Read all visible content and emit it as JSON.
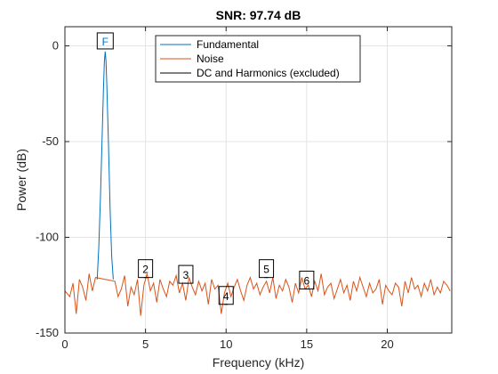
{
  "chart_data": {
    "type": "line",
    "title": "SNR:  97.74 dB",
    "xlabel": "Frequency (kHz)",
    "ylabel": "Power (dB)",
    "xlim": [
      0,
      24
    ],
    "ylim": [
      -150,
      10
    ],
    "xticks": [
      0,
      5,
      10,
      15,
      20
    ],
    "xtick_labels": [
      "0",
      "5",
      "10",
      "15",
      "20"
    ],
    "yticks": [
      0,
      -50,
      -100,
      -150
    ],
    "ytick_labels": [
      "0",
      "-50",
      "-100",
      "-150"
    ],
    "grid": true,
    "legend_position": "top",
    "series": [
      {
        "name": "Fundamental",
        "color": "#0072BD",
        "x": [
          2.0,
          2.1,
          2.2,
          2.3,
          2.4,
          2.45,
          2.5,
          2.55,
          2.6,
          2.7,
          2.8,
          2.9,
          3.0
        ],
        "y": [
          -122,
          -105,
          -80,
          -50,
          -20,
          -8,
          -3,
          -8,
          -20,
          -50,
          -85,
          -110,
          -122
        ]
      },
      {
        "name": "Noise",
        "color": "#D95319",
        "x": [
          0.0,
          0.3,
          0.5,
          0.7,
          0.9,
          1.1,
          1.3,
          1.5,
          1.7,
          1.9,
          3.1,
          3.3,
          3.5,
          3.7,
          3.9,
          4.1,
          4.3,
          4.5,
          4.7,
          4.9,
          5.1,
          5.3,
          5.5,
          5.7,
          5.9,
          6.1,
          6.3,
          6.5,
          6.7,
          6.9,
          7.1,
          7.3,
          7.5,
          7.7,
          7.9,
          8.1,
          8.3,
          8.5,
          8.7,
          8.9,
          9.1,
          9.3,
          9.5,
          9.7,
          9.9,
          10.1,
          10.3,
          10.5,
          10.7,
          10.9,
          11.1,
          11.3,
          11.5,
          11.7,
          11.9,
          12.1,
          12.3,
          12.5,
          12.7,
          12.9,
          13.1,
          13.3,
          13.5,
          13.7,
          13.9,
          14.1,
          14.3,
          14.5,
          14.7,
          14.9,
          15.1,
          15.3,
          15.5,
          15.7,
          15.9,
          16.1,
          16.3,
          16.5,
          16.7,
          16.9,
          17.1,
          17.3,
          17.5,
          17.7,
          17.9,
          18.1,
          18.3,
          18.5,
          18.7,
          18.9,
          19.1,
          19.3,
          19.5,
          19.7,
          19.9,
          20.1,
          20.3,
          20.5,
          20.7,
          20.9,
          21.1,
          21.3,
          21.5,
          21.7,
          21.9,
          22.1,
          22.3,
          22.5,
          22.7,
          22.9,
          23.1,
          23.3,
          23.5,
          23.7,
          23.9
        ],
        "y": [
          -128,
          -131,
          -124,
          -140,
          -122,
          -126,
          -133,
          -119,
          -128,
          -121,
          -123,
          -131,
          -127,
          -120,
          -136,
          -126,
          -130,
          -122,
          -141,
          -125,
          -119,
          -128,
          -124,
          -134,
          -122,
          -127,
          -131,
          -123,
          -125,
          -120,
          -129,
          -124,
          -133,
          -121,
          -126,
          -130,
          -123,
          -128,
          -124,
          -135,
          -122,
          -127,
          -125,
          -140,
          -129,
          -124,
          -131,
          -126,
          -122,
          -128,
          -133,
          -125,
          -121,
          -127,
          -124,
          -130,
          -126,
          -123,
          -129,
          -121,
          -132,
          -125,
          -128,
          -122,
          -126,
          -134,
          -124,
          -129,
          -121,
          -127,
          -125,
          -131,
          -123,
          -128,
          -119,
          -130,
          -126,
          -124,
          -132,
          -127,
          -122,
          -129,
          -125,
          -133,
          -123,
          -128,
          -121,
          -126,
          -131,
          -124,
          -129,
          -127,
          -122,
          -135,
          -125,
          -128,
          -130,
          -124,
          -126,
          -136,
          -123,
          -129,
          -121,
          -127,
          -125,
          -131,
          -124,
          -128,
          -122,
          -130,
          -126,
          -129,
          -123,
          -125,
          -128
        ]
      },
      {
        "name": "DC and Harmonics (excluded)",
        "color": "#000000",
        "x": [
          5.0,
          7.5,
          10.0,
          12.5,
          15.0
        ],
        "y": [
          -121,
          -124,
          -135,
          -121,
          -127
        ]
      }
    ],
    "fundamental_marker": {
      "label": "F",
      "x": 2.5,
      "y": -3,
      "color": "#0072BD"
    },
    "harmonic_markers": [
      {
        "label": "2",
        "x": 5.0,
        "y": -121
      },
      {
        "label": "3",
        "x": 7.5,
        "y": -124
      },
      {
        "label": "4",
        "x": 10.0,
        "y": -135
      },
      {
        "label": "5",
        "x": 12.5,
        "y": -121
      },
      {
        "label": "6",
        "x": 15.0,
        "y": -127
      }
    ]
  }
}
